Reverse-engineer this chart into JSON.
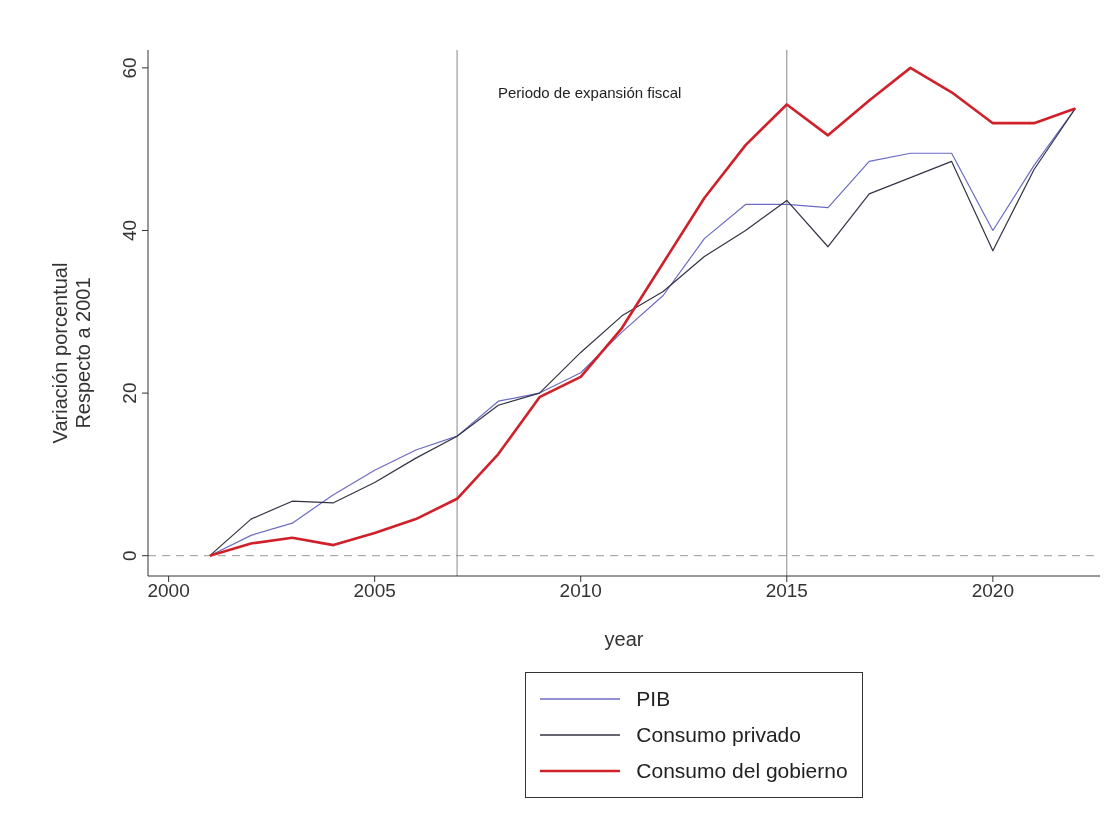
{
  "chart_data": {
    "type": "line",
    "xlabel": "year",
    "ylabel": "Variación porcentual\nRespecto a 2001",
    "x": [
      2001,
      2002,
      2003,
      2004,
      2005,
      2006,
      2007,
      2008,
      2009,
      2010,
      2011,
      2012,
      2013,
      2014,
      2015,
      2016,
      2017,
      2018,
      2019,
      2020,
      2021,
      2022
    ],
    "series": [
      {
        "name": "PIB",
        "color": "#6b6bc4",
        "values": [
          0,
          2.5,
          4,
          7.5,
          10.5,
          13,
          14.7,
          19,
          20,
          22.5,
          27.5,
          32,
          39,
          43.2,
          43.2,
          42.8,
          48.5,
          49.5,
          49.5,
          40,
          48,
          55
        ]
      },
      {
        "name": "Consumo privado",
        "color": "#333344",
        "values": [
          0,
          4.5,
          6.7,
          6.5,
          9,
          12,
          14.7,
          18.5,
          20,
          25,
          29.5,
          32.5,
          36.8,
          40,
          43.7,
          38,
          44.5,
          46.5,
          48.5,
          37.5,
          47.5,
          55
        ]
      },
      {
        "name": "Consumo del gobierno",
        "color": "#d0202a",
        "values": [
          0,
          1.5,
          2.2,
          1.3,
          2.8,
          4.5,
          7,
          12.5,
          19.5,
          22,
          28,
          36,
          44,
          50.5,
          55.5,
          51.7,
          56,
          60,
          57,
          53.2,
          53.2,
          55
        ]
      }
    ],
    "xlim": [
      1999.5,
      2022.6
    ],
    "xticks": [
      2000,
      2005,
      2010,
      2015,
      2020
    ],
    "ylim": [
      -2.5,
      62.2
    ],
    "yticks": [
      0,
      20,
      40,
      60
    ],
    "ref_lines": [
      {
        "axis": "y",
        "value": 0,
        "color": "#999999",
        "line_style": "dashed"
      },
      {
        "axis": "x",
        "value": 2007,
        "color": "#888888"
      },
      {
        "axis": "x",
        "value": 2015,
        "color": "#888888"
      }
    ],
    "annotations": [
      "Periodo de expansión fiscal"
    ],
    "legend": "bottom",
    "grid": false,
    "marker": "none",
    "line_style": "solid"
  }
}
